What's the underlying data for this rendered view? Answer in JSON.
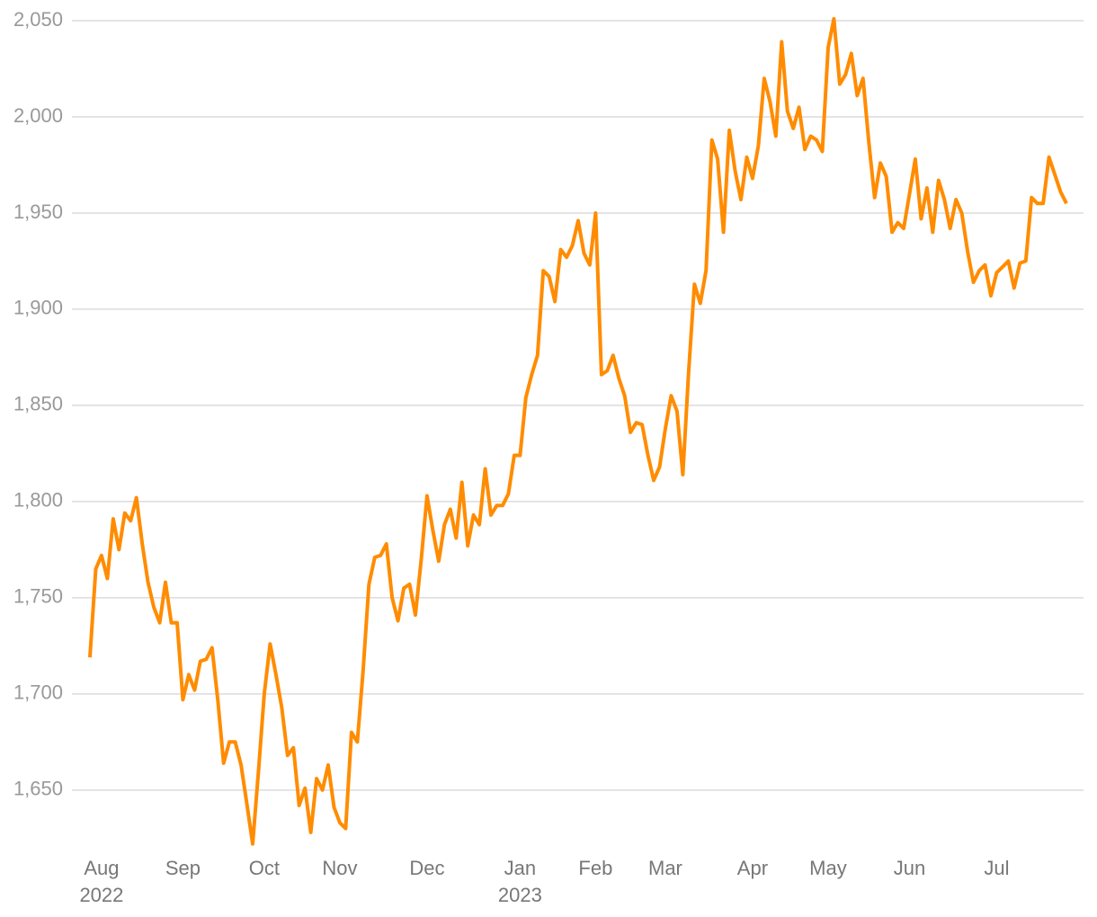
{
  "chart_data": {
    "type": "line",
    "categories": [
      null,
      null,
      "Aug 2022",
      null,
      null,
      null,
      null,
      null,
      null,
      null,
      null,
      null,
      null,
      null,
      null,
      null,
      "Sep",
      null,
      null,
      null,
      null,
      null,
      null,
      null,
      null,
      null,
      null,
      null,
      null,
      null,
      "Oct",
      null,
      null,
      null,
      null,
      null,
      null,
      null,
      null,
      null,
      null,
      null,
      null,
      "Nov",
      null,
      null,
      null,
      null,
      null,
      null,
      null,
      null,
      null,
      null,
      null,
      null,
      null,
      null,
      "Dec",
      null,
      null,
      null,
      null,
      null,
      null,
      null,
      null,
      null,
      null,
      null,
      null,
      null,
      null,
      null,
      "Jan 2023",
      null,
      null,
      null,
      null,
      null,
      null,
      null,
      null,
      null,
      null,
      null,
      null,
      "Feb",
      null,
      null,
      null,
      null,
      null,
      null,
      null,
      null,
      null,
      null,
      null,
      "Mar",
      null,
      null,
      null,
      null,
      null,
      null,
      null,
      null,
      null,
      null,
      null,
      null,
      null,
      null,
      "Apr",
      null,
      null,
      null,
      null,
      null,
      null,
      null,
      null,
      null,
      null,
      null,
      null,
      "May",
      null,
      null,
      null,
      null,
      null,
      null,
      null,
      null,
      null,
      null,
      null,
      null,
      null,
      "Jun",
      null,
      null,
      null,
      null,
      null,
      null,
      null,
      null,
      null,
      null,
      null,
      null,
      null,
      null,
      "Jul",
      null,
      null,
      null,
      null,
      null,
      null,
      null,
      null,
      null,
      null,
      null,
      null
    ],
    "series": [
      {
        "color": "#ff8c00",
        "values": [
          1719,
          1765,
          1772,
          1760,
          1791,
          1775,
          1794,
          1790,
          1802,
          1778,
          1758,
          1745,
          1737,
          1758,
          1737,
          1737,
          1697,
          1710,
          1702,
          1717,
          1718,
          1724,
          1697,
          1664,
          1675,
          1675,
          1663,
          1643,
          1622,
          1660,
          1700,
          1726,
          1710,
          1693,
          1668,
          1672,
          1642,
          1651,
          1628,
          1656,
          1650,
          1663,
          1641,
          1633,
          1630,
          1680,
          1675,
          1712,
          1757,
          1771,
          1772,
          1778,
          1750,
          1738,
          1755,
          1757,
          1741,
          1770,
          1803,
          1785,
          1769,
          1788,
          1796,
          1781,
          1810,
          1777,
          1793,
          1788,
          1817,
          1793,
          1798,
          1798,
          1804,
          1824,
          1824,
          1854,
          1866,
          1876,
          1920,
          1917,
          1904,
          1931,
          1927,
          1933,
          1946,
          1929,
          1923,
          1950,
          1866,
          1868,
          1876,
          1864,
          1855,
          1836,
          1841,
          1840,
          1824,
          1811,
          1818,
          1838,
          1855,
          1847,
          1814,
          1867,
          1913,
          1903,
          1920,
          1988,
          1978,
          1940,
          1993,
          1972,
          1957,
          1979,
          1968,
          1985,
          2020,
          2008,
          1990,
          2039,
          2003,
          1994,
          2005,
          1983,
          1990,
          1988,
          1982,
          2036,
          2051,
          2017,
          2022,
          2033,
          2011,
          2020,
          1987,
          1958,
          1976,
          1969,
          1940,
          1945,
          1942,
          1960,
          1978,
          1947,
          1963,
          1940,
          1967,
          1957,
          1942,
          1957,
          1950,
          1930,
          1914,
          1920,
          1923,
          1907,
          1919,
          1922,
          1925,
          1911,
          1924,
          1925,
          1958,
          1955,
          1955,
          1979,
          1970,
          1961,
          1955
        ]
      }
    ],
    "ylim": [
      1620,
      2050
    ],
    "yticks": [
      {
        "value": 1650,
        "label": "1,650"
      },
      {
        "value": 1700,
        "label": "1,700"
      },
      {
        "value": 1750,
        "label": "1,750"
      },
      {
        "value": 1800,
        "label": "1,800"
      },
      {
        "value": 1850,
        "label": "1,850"
      },
      {
        "value": 1900,
        "label": "1,900"
      },
      {
        "value": 1950,
        "label": "1,950"
      },
      {
        "value": 2000,
        "label": "2,000"
      },
      {
        "value": 2050,
        "label": "2,050"
      }
    ],
    "grid": true
  }
}
